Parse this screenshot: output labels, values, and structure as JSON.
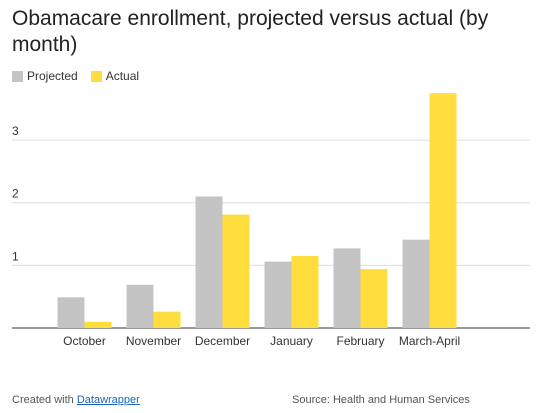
{
  "chart_data": {
    "type": "bar",
    "title": "Obamacare enrollment, projected versus actual (by month)",
    "categories": [
      "October",
      "November",
      "December",
      "January",
      "February",
      "March-April"
    ],
    "series": [
      {
        "name": "Projected",
        "color": "#c4c4c4",
        "values": [
          0.49,
          0.69,
          2.1,
          1.06,
          1.27,
          1.41
        ]
      },
      {
        "name": "Actual",
        "color": "#ffdd3c",
        "values": [
          0.1,
          0.26,
          1.81,
          1.15,
          0.94,
          3.75
        ]
      }
    ],
    "yticks": [
      1,
      2,
      3
    ],
    "ylim": [
      0,
      3.8
    ],
    "xlabel": "",
    "ylabel": "",
    "grid": true,
    "legend_position": "top-left"
  },
  "footer": {
    "created_prefix": "Created with",
    "created_link": "Datawrapper",
    "source": "Source: Health and Human Services"
  }
}
